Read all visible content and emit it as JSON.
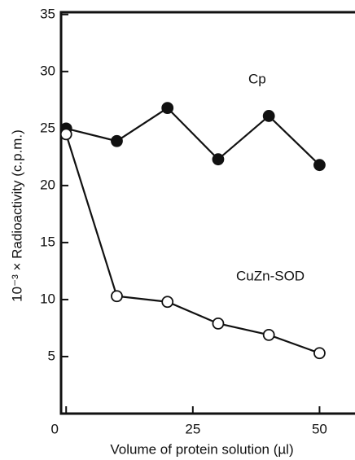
{
  "chart_data": {
    "type": "line",
    "xlabel": "Volume of protein solution (µl)",
    "ylabel": "10⁻³ × Radioactivity (c.p.m.)",
    "annotations": [
      "Cp",
      "CuZn-SOD"
    ],
    "x": [
      0,
      10,
      20,
      30,
      40,
      50
    ],
    "series": [
      {
        "name": "Cp",
        "color": "#111111",
        "marker": "filled",
        "values": [
          25,
          23.9,
          26.8,
          22.3,
          26.1,
          21.8
        ]
      },
      {
        "name": "CuZn-SOD",
        "color": "#111111",
        "marker": "open",
        "values": [
          24.5,
          10.3,
          9.8,
          7.9,
          6.9,
          5.3
        ]
      }
    ],
    "xlim": [
      -1,
      57
    ],
    "xticks": [
      0,
      25,
      50
    ],
    "ylim": [
      0,
      35.2
    ],
    "yticks": [
      5,
      10,
      15,
      20,
      25,
      30,
      35
    ],
    "grid": false
  }
}
